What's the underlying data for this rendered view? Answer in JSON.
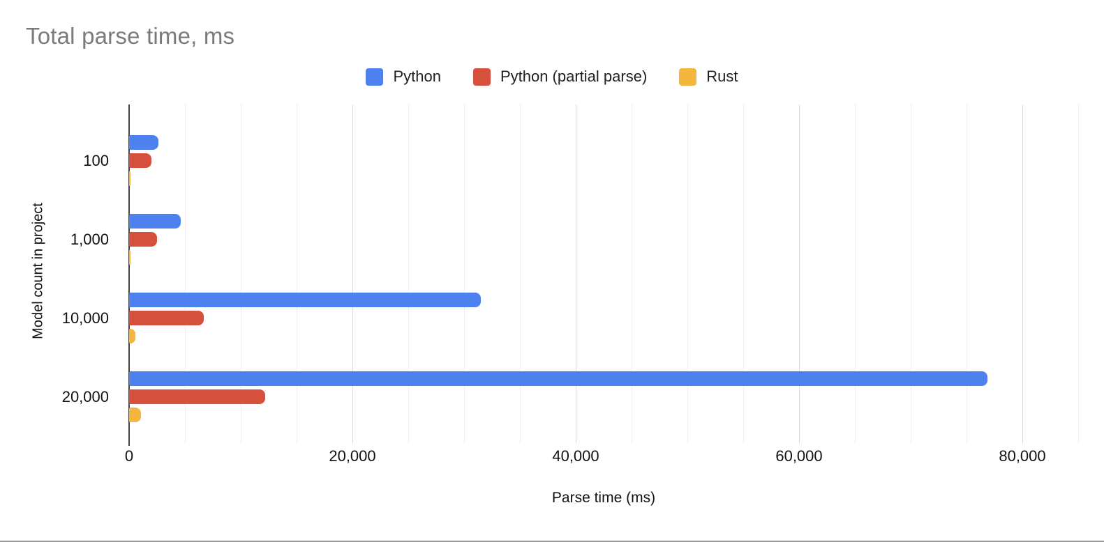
{
  "page": {
    "background": "#ffffff",
    "bottom_divider_color": "#9a9a9a"
  },
  "chart_data": {
    "type": "bar",
    "orientation": "horizontal",
    "title": "Total parse time, ms",
    "title_color": "#7a7a7a",
    "xlabel": "Parse time (ms)",
    "ylabel": "Model count in project",
    "categories": [
      "100",
      "1,000",
      "10,000",
      "20,000"
    ],
    "series": [
      {
        "name": "Python",
        "color": "#4e81ee",
        "values": [
          2600,
          4600,
          31500,
          76900
        ]
      },
      {
        "name": "Python (partial parse)",
        "color": "#d6503e",
        "values": [
          2000,
          2500,
          6700,
          12200
        ]
      },
      {
        "name": "Rust",
        "color": "#f4b63c",
        "values": [
          120,
          130,
          560,
          1060
        ]
      }
    ],
    "xlim": [
      0,
      80000
    ],
    "plot_max": 85000,
    "x_ticks": [
      {
        "value": 0,
        "label": "0"
      },
      {
        "value": 20000,
        "label": "20,000"
      },
      {
        "value": 40000,
        "label": "40,000"
      },
      {
        "value": 60000,
        "label": "60,000"
      },
      {
        "value": 80000,
        "label": "80,000"
      }
    ],
    "minor_grid_step": 5000,
    "major_grid_step": 20000,
    "grid": true,
    "legend_position": "top",
    "axis_line_color": "#424242",
    "major_grid_color": "#dadada",
    "minor_grid_color": "#ededed"
  }
}
